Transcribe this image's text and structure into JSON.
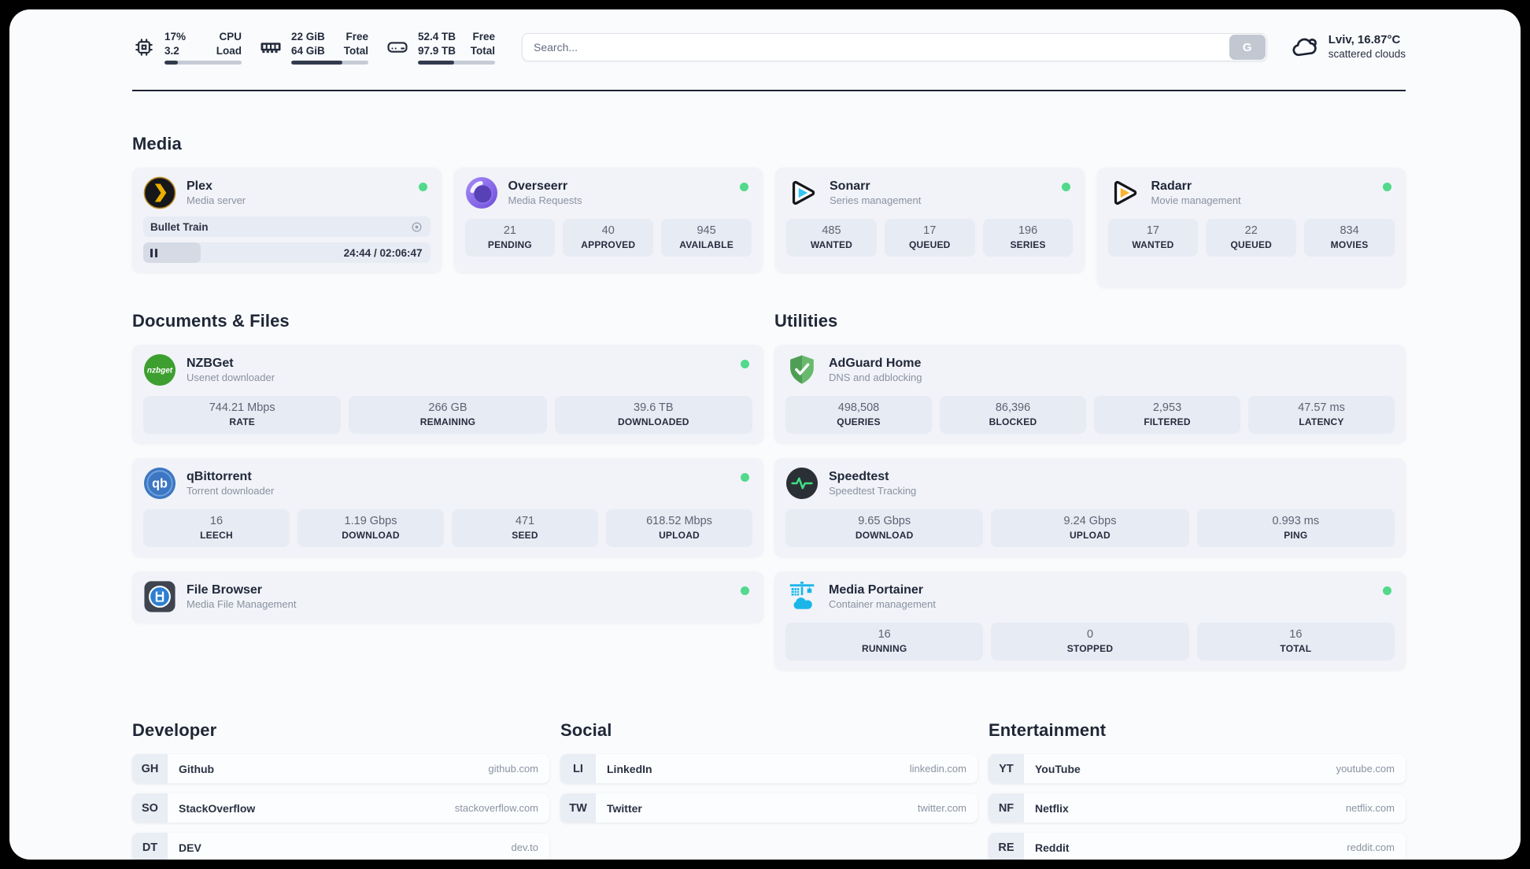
{
  "topbar": {
    "cpu": {
      "value1": "17%",
      "value2": "3.2",
      "label1": "CPU",
      "label2": "Load",
      "progress": 17
    },
    "memory": {
      "value1": "22 GiB",
      "value2": "64 GiB",
      "label1": "Free",
      "label2": "Total",
      "progress": 66
    },
    "disk": {
      "value1": "52.4 TB",
      "value2": "97.9 TB",
      "label1": "Free",
      "label2": "Total",
      "progress": 47
    },
    "search": {
      "placeholder": "Search...",
      "engine_button": "G"
    },
    "weather": {
      "location": "Lviv, 16.87°C",
      "condition": "scattered clouds"
    }
  },
  "colors": {
    "status_green": "#52d98b",
    "plex_gold": "#ebaf00",
    "sonarr_cyan": "#35c5f4",
    "radarr_amber": "#f9b234",
    "nzbget_green": "#3d9f2f",
    "qbittorrent_blue": "#3d76c2",
    "filebrowser_blue": "#2d7fd1",
    "adguard_green": "#5aad5f",
    "speedtest_pulse": "#3fe084",
    "portainer_blue": "#1ab6ea"
  },
  "media": {
    "title": "Media",
    "apps": [
      {
        "name": "Plex",
        "subtitle": "Media server",
        "online": true,
        "player": {
          "title": "Bullet Train",
          "time": "24:44 / 02:06:47",
          "progress": 20
        }
      },
      {
        "name": "Overseerr",
        "subtitle": "Media Requests",
        "online": true,
        "stats": [
          {
            "value": "21",
            "label": "PENDING"
          },
          {
            "value": "40",
            "label": "APPROVED"
          },
          {
            "value": "945",
            "label": "AVAILABLE"
          }
        ]
      },
      {
        "name": "Sonarr",
        "subtitle": "Series management",
        "online": true,
        "stats": [
          {
            "value": "485",
            "label": "WANTED"
          },
          {
            "value": "17",
            "label": "QUEUED"
          },
          {
            "value": "196",
            "label": "SERIES"
          }
        ]
      },
      {
        "name": "Radarr",
        "subtitle": "Movie management",
        "online": true,
        "stats": [
          {
            "value": "17",
            "label": "WANTED"
          },
          {
            "value": "22",
            "label": "QUEUED"
          },
          {
            "value": "834",
            "label": "MOVIES"
          }
        ]
      }
    ]
  },
  "documents": {
    "title": "Documents & Files",
    "apps": [
      {
        "name": "NZBGet",
        "subtitle": "Usenet downloader",
        "online": true,
        "stats": [
          {
            "value": "744.21 Mbps",
            "label": "RATE"
          },
          {
            "value": "266 GB",
            "label": "REMAINING"
          },
          {
            "value": "39.6 TB",
            "label": "DOWNLOADED"
          }
        ]
      },
      {
        "name": "qBittorrent",
        "subtitle": "Torrent downloader",
        "online": true,
        "stats": [
          {
            "value": "16",
            "label": "LEECH"
          },
          {
            "value": "1.19 Gbps",
            "label": "DOWNLOAD"
          },
          {
            "value": "471",
            "label": "SEED"
          },
          {
            "value": "618.52 Mbps",
            "label": "UPLOAD"
          }
        ]
      },
      {
        "name": "File Browser",
        "subtitle": "Media File Management",
        "online": true
      }
    ]
  },
  "utilities": {
    "title": "Utilities",
    "apps": [
      {
        "name": "AdGuard Home",
        "subtitle": "DNS and adblocking",
        "online": false,
        "stats": [
          {
            "value": "498,508",
            "label": "QUERIES"
          },
          {
            "value": "86,396",
            "label": "BLOCKED"
          },
          {
            "value": "2,953",
            "label": "FILTERED"
          },
          {
            "value": "47.57 ms",
            "label": "LATENCY"
          }
        ]
      },
      {
        "name": "Speedtest",
        "subtitle": "Speedtest Tracking",
        "online": false,
        "stats": [
          {
            "value": "9.65 Gbps",
            "label": "DOWNLOAD"
          },
          {
            "value": "9.24 Gbps",
            "label": "UPLOAD"
          },
          {
            "value": "0.993 ms",
            "label": "PING"
          }
        ]
      },
      {
        "name": "Media Portainer",
        "subtitle": "Container management",
        "online": true,
        "stats": [
          {
            "value": "16",
            "label": "RUNNING"
          },
          {
            "value": "0",
            "label": "STOPPED"
          },
          {
            "value": "16",
            "label": "TOTAL"
          }
        ]
      }
    ]
  },
  "developer": {
    "title": "Developer",
    "links": [
      {
        "abbr": "GH",
        "name": "Github",
        "url": "github.com"
      },
      {
        "abbr": "SO",
        "name": "StackOverflow",
        "url": "stackoverflow.com"
      },
      {
        "abbr": "DT",
        "name": "DEV",
        "url": "dev.to"
      }
    ]
  },
  "social": {
    "title": "Social",
    "links": [
      {
        "abbr": "LI",
        "name": "LinkedIn",
        "url": "linkedin.com"
      },
      {
        "abbr": "TW",
        "name": "Twitter",
        "url": "twitter.com"
      }
    ]
  },
  "entertainment": {
    "title": "Entertainment",
    "links": [
      {
        "abbr": "YT",
        "name": "YouTube",
        "url": "youtube.com"
      },
      {
        "abbr": "NF",
        "name": "Netflix",
        "url": "netflix.com"
      },
      {
        "abbr": "RE",
        "name": "Reddit",
        "url": "reddit.com"
      }
    ]
  }
}
